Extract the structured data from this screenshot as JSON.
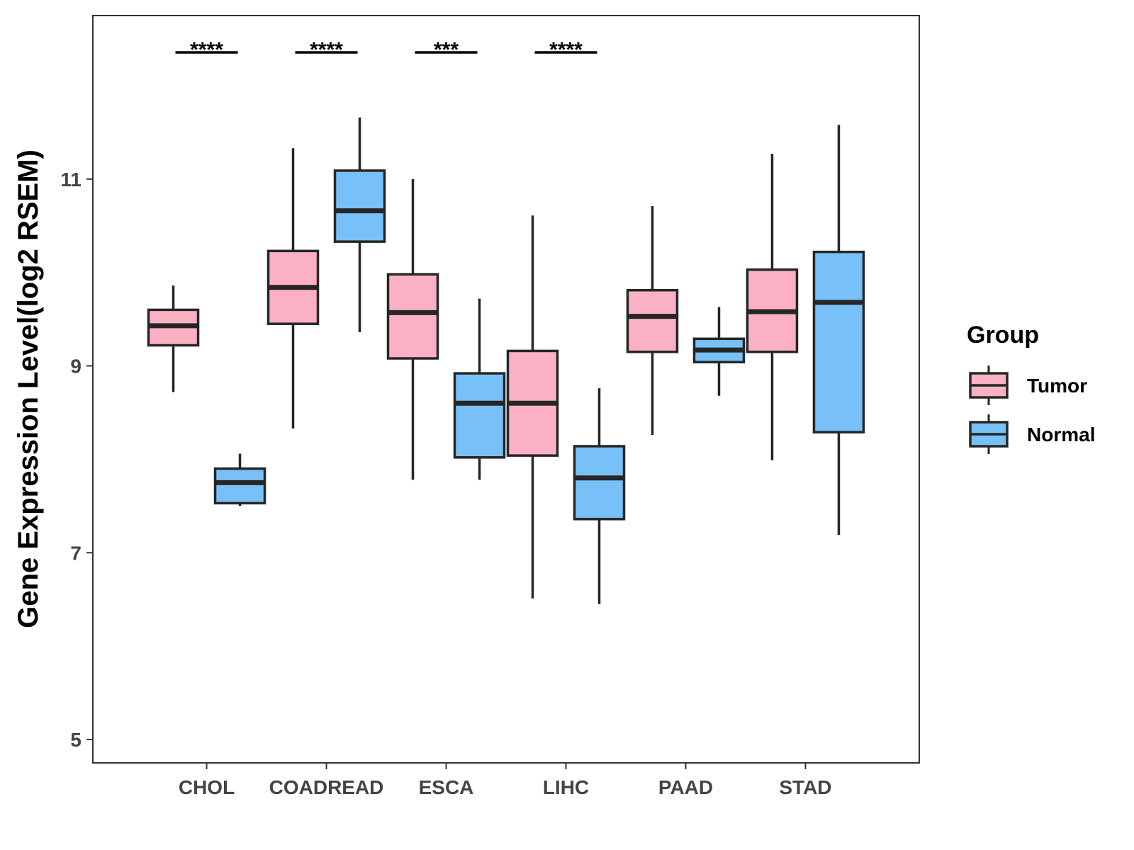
{
  "chart_data": {
    "type": "box",
    "title": "",
    "xlabel": "",
    "ylabel": "Gene Expression Level(log2 RSEM)",
    "ylim": [
      4.75,
      12.75
    ],
    "yticks": [
      5,
      7,
      9,
      11
    ],
    "categories": [
      "CHOL",
      "COADREAD",
      "ESCA",
      "LIHC",
      "PAAD",
      "STAD"
    ],
    "legend": {
      "title": "Group",
      "position": "right",
      "entries": [
        {
          "name": "Tumor",
          "color": "#FBB1C3"
        },
        {
          "name": "Normal",
          "color": "#78C1F8"
        }
      ]
    },
    "series": [
      {
        "name": "Tumor",
        "color": "#FBB1C3",
        "boxes": [
          {
            "min": 8.72,
            "q1": 9.22,
            "median": 9.43,
            "q3": 9.6,
            "max": 9.86
          },
          {
            "min": 8.33,
            "q1": 9.45,
            "median": 9.84,
            "q3": 10.23,
            "max": 11.33
          },
          {
            "min": 7.78,
            "q1": 9.08,
            "median": 9.57,
            "q3": 9.98,
            "max": 11.0
          },
          {
            "min": 6.51,
            "q1": 8.04,
            "median": 8.6,
            "q3": 9.16,
            "max": 10.61
          },
          {
            "min": 8.26,
            "q1": 9.15,
            "median": 9.53,
            "q3": 9.81,
            "max": 10.71
          },
          {
            "min": 7.99,
            "q1": 9.15,
            "median": 9.58,
            "q3": 10.03,
            "max": 11.27
          }
        ]
      },
      {
        "name": "Normal",
        "color": "#78C1F8",
        "boxes": [
          {
            "min": 7.5,
            "q1": 7.53,
            "median": 7.75,
            "q3": 7.9,
            "max": 8.06
          },
          {
            "min": 9.36,
            "q1": 10.33,
            "median": 10.66,
            "q3": 11.09,
            "max": 11.66
          },
          {
            "min": 7.78,
            "q1": 8.02,
            "median": 8.6,
            "q3": 8.92,
            "max": 9.72
          },
          {
            "min": 6.45,
            "q1": 7.36,
            "median": 7.8,
            "q3": 8.14,
            "max": 8.76
          },
          {
            "min": 8.68,
            "q1": 9.04,
            "median": 9.17,
            "q3": 9.29,
            "max": 9.63
          },
          {
            "min": 7.19,
            "q1": 8.29,
            "median": 9.68,
            "q3": 10.22,
            "max": 11.58
          }
        ]
      }
    ],
    "significance": [
      {
        "category": "CHOL",
        "label": "****"
      },
      {
        "category": "COADREAD",
        "label": "****"
      },
      {
        "category": "ESCA",
        "label": "***"
      },
      {
        "category": "LIHC",
        "label": "****"
      }
    ]
  }
}
